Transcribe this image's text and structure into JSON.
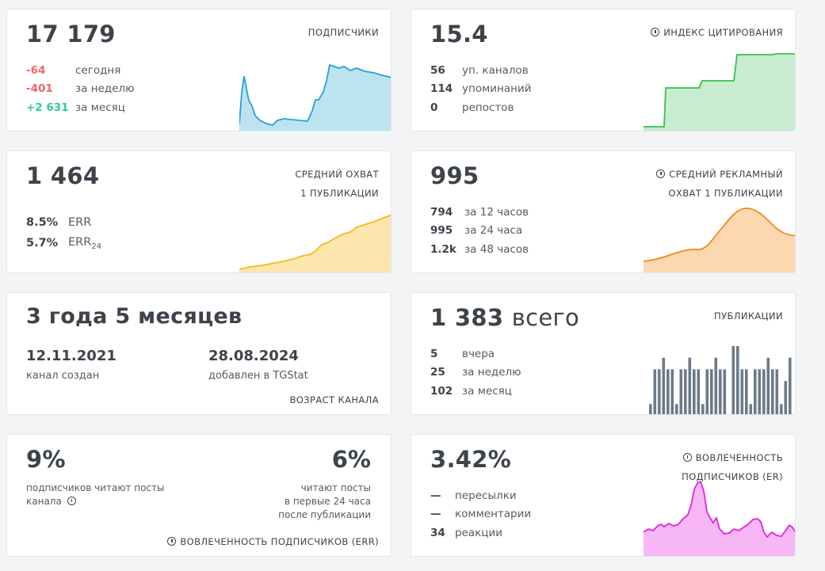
{
  "subscribers": {
    "value": "17 179",
    "label": "ПОДПИСЧИКИ",
    "rows": [
      {
        "v": "-64",
        "t": "сегодня"
      },
      {
        "v": "-401",
        "t": "за неделю"
      },
      {
        "v": "+2 631",
        "t": "за месяц"
      }
    ],
    "color": "#2a9fd6",
    "fill": "#bde3f1"
  },
  "citation": {
    "value": "15.4",
    "label": "ИНДЕКС ЦИТИРОВАНИЯ",
    "rows": [
      {
        "v": "56",
        "t": "уп. каналов"
      },
      {
        "v": "114",
        "t": "упоминаний"
      },
      {
        "v": "0",
        "t": "репостов"
      }
    ],
    "color": "#3cbf4f",
    "fill": "#c7ecd0"
  },
  "reach": {
    "value": "1 464",
    "label1": "СРЕДНИЙ ОХВАТ",
    "label2": "1 ПУБЛИКАЦИИ",
    "rows": [
      {
        "v": "8.5%",
        "t": "ERR"
      },
      {
        "v": "5.7%",
        "t": "ERR",
        "sub": "24"
      }
    ],
    "color": "#f5b91a",
    "fill": "#fde6ad"
  },
  "ad_reach": {
    "value": "995",
    "label1": "СРЕДНИЙ РЕКЛАМНЫЙ",
    "label2": "ОХВАТ 1 ПУБЛИКАЦИИ",
    "rows": [
      {
        "v": "794",
        "t": "за 12 часов"
      },
      {
        "v": "995",
        "t": "за 24 часа"
      },
      {
        "v": "1.2k",
        "t": "за 48 часов"
      }
    ],
    "color": "#f08a1c",
    "fill": "#fcd7b0"
  },
  "age": {
    "value": "3 года 5 месяцев",
    "created_date": "12.11.2021",
    "created_label": "канал создан",
    "added_date": "28.08.2024",
    "added_label": "добавлен в TGStat",
    "label": "ВОЗРАСТ КАНАЛА"
  },
  "posts": {
    "value": "1 383",
    "value_suffix": "всего",
    "label": "ПУБЛИКАЦИИ",
    "rows": [
      {
        "v": "5",
        "t": "вчера"
      },
      {
        "v": "25",
        "t": "за неделю"
      },
      {
        "v": "102",
        "t": "за месяц"
      }
    ],
    "color": "#6c7a89",
    "bars": [
      1,
      4,
      4,
      5,
      4,
      4,
      1,
      4,
      4,
      5,
      4,
      4,
      1,
      4,
      4,
      5,
      4,
      4,
      0,
      6,
      6,
      4,
      4,
      1,
      4,
      4,
      4,
      5,
      4,
      4,
      1,
      3,
      5
    ]
  },
  "err": {
    "value_left": "9%",
    "text_left_1": "подписчиков читают посты",
    "text_left_2": "канала",
    "value_right": "6%",
    "text_right_1": "читают посты",
    "text_right_2": "в первые 24 часа",
    "text_right_3": "после публикации",
    "label": "ВОВЛЕЧЕННОСТЬ ПОДПИСЧИКОВ (ERR)"
  },
  "er": {
    "value": "3.42%",
    "label1": "ВОВЛЕЧЕННОСТЬ",
    "label2": "ПОДПИСЧИКОВ (ER)",
    "rows": [
      {
        "v": "—",
        "t": "пересылки"
      },
      {
        "v": "—",
        "t": "комментарии"
      },
      {
        "v": "34",
        "t": "реакции"
      }
    ],
    "color": "#e023e0",
    "fill": "#f7b7f4"
  }
}
